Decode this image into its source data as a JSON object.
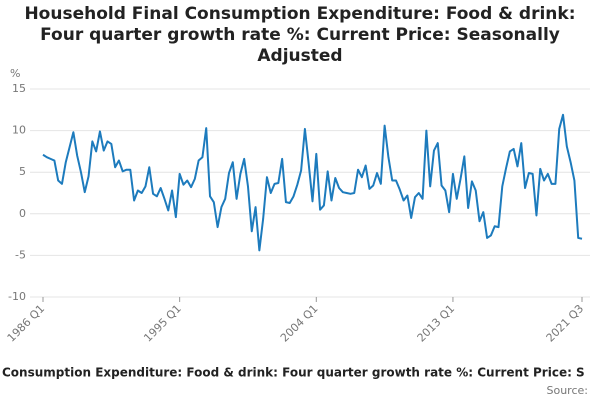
{
  "chart_data": {
    "type": "line",
    "title": "Household Final Consumption Expenditure: Food & drink: Four quarter growth rate %: Current Price: Seasonally Adjusted",
    "y_label": "%",
    "source": "Source:",
    "categories": [
      "1986 Q1",
      null,
      null,
      null,
      null,
      null,
      null,
      null,
      null,
      null,
      null,
      null,
      null,
      null,
      null,
      null,
      null,
      null,
      null,
      null,
      null,
      null,
      null,
      null,
      null,
      null,
      null,
      null,
      null,
      null,
      null,
      null,
      null,
      null,
      null,
      null,
      "1995 Q1",
      null,
      null,
      null,
      null,
      null,
      null,
      null,
      null,
      null,
      null,
      null,
      null,
      null,
      null,
      null,
      null,
      null,
      null,
      null,
      null,
      null,
      null,
      null,
      null,
      null,
      null,
      null,
      null,
      null,
      null,
      null,
      null,
      null,
      null,
      null,
      "2004 Q1",
      null,
      null,
      null,
      null,
      null,
      null,
      null,
      null,
      null,
      null,
      null,
      null,
      null,
      null,
      null,
      null,
      null,
      null,
      null,
      null,
      null,
      null,
      null,
      null,
      null,
      null,
      null,
      null,
      null,
      null,
      null,
      null,
      null,
      null,
      null,
      "2013 Q1",
      null,
      null,
      null,
      null,
      null,
      null,
      null,
      null,
      null,
      null,
      null,
      null,
      null,
      null,
      null,
      null,
      null,
      null,
      null,
      null,
      null,
      null,
      null,
      null,
      null,
      null,
      null,
      null,
      null,
      null,
      null,
      null,
      null,
      "2021 Q3"
    ],
    "series": [
      {
        "name": "Consumption Expenditure: Food & drink: Four quarter growth rate %: Current Price: S",
        "color": "#1d7bbd",
        "values": [
          7.1,
          6.8,
          6.6,
          6.4,
          4.0,
          3.6,
          6.2,
          8.0,
          9.8,
          7.0,
          5.0,
          2.6,
          4.5,
          8.7,
          7.5,
          9.9,
          7.6,
          8.7,
          8.4,
          5.6,
          6.4,
          5.1,
          5.3,
          5.3,
          1.6,
          2.8,
          2.5,
          3.3,
          5.6,
          2.4,
          2.1,
          3.1,
          1.8,
          0.4,
          2.8,
          -0.4,
          4.8,
          3.5,
          4.0,
          3.2,
          4.2,
          6.4,
          6.8,
          10.3,
          2.1,
          1.4,
          -1.6,
          0.8,
          1.8,
          4.9,
          6.2,
          1.8,
          4.8,
          6.6,
          3.3,
          -2.1,
          0.8,
          -4.4,
          -0.6,
          4.4,
          2.5,
          3.6,
          3.7,
          6.6,
          1.4,
          1.3,
          2.1,
          3.5,
          5.2,
          10.2,
          6.0,
          1.5,
          7.2,
          0.5,
          1.0,
          5.1,
          1.6,
          4.3,
          3.1,
          2.6,
          2.5,
          2.4,
          2.5,
          5.3,
          4.4,
          5.8,
          3.0,
          3.4,
          4.9,
          3.6,
          10.6,
          6.8,
          4.0,
          4.0,
          2.9,
          1.6,
          2.2,
          -0.5,
          2.0,
          2.5,
          1.8,
          10.0,
          3.3,
          7.6,
          8.5,
          3.4,
          2.8,
          0.2,
          4.8,
          1.8,
          4.2,
          6.9,
          0.7,
          3.9,
          2.8,
          -0.9,
          0.2,
          -2.9,
          -2.6,
          -1.5,
          -1.6,
          3.3,
          5.5,
          7.5,
          7.8,
          5.7,
          8.5,
          3.1,
          4.9,
          4.8,
          -0.2,
          5.4,
          4.0,
          4.8,
          3.6,
          3.6,
          10.2,
          11.9,
          8.1,
          6.2,
          4.0,
          -2.9,
          -3.0
        ]
      }
    ],
    "ylim": [
      -10,
      15
    ],
    "yticks": [
      -10,
      -5,
      0,
      5,
      10,
      15
    ],
    "grid": true
  }
}
